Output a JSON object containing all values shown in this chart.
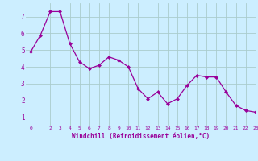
{
  "x": [
    0,
    1,
    2,
    3,
    4,
    5,
    6,
    7,
    8,
    9,
    10,
    11,
    12,
    13,
    14,
    15,
    16,
    17,
    18,
    19,
    20,
    21,
    22,
    23
  ],
  "y": [
    4.9,
    5.9,
    7.3,
    7.3,
    5.4,
    4.3,
    3.9,
    4.1,
    4.6,
    4.4,
    4.0,
    2.7,
    2.1,
    2.5,
    1.8,
    2.1,
    2.9,
    3.5,
    3.4,
    3.4,
    2.5,
    1.7,
    1.4,
    1.3
  ],
  "line_color": "#990099",
  "marker": "D",
  "marker_size": 2.0,
  "bg_color": "#cceeff",
  "grid_color": "#aacccc",
  "xlabel": "Windchill (Refroidissement éolien,°C)",
  "xlabel_color": "#990099",
  "tick_color": "#990099",
  "ylim": [
    0.5,
    7.8
  ],
  "xlim": [
    -0.5,
    23
  ],
  "yticks": [
    1,
    2,
    3,
    4,
    5,
    6,
    7
  ],
  "xticks": [
    0,
    2,
    3,
    4,
    5,
    6,
    7,
    8,
    9,
    10,
    11,
    12,
    13,
    14,
    15,
    16,
    17,
    18,
    19,
    20,
    21,
    22,
    23
  ]
}
